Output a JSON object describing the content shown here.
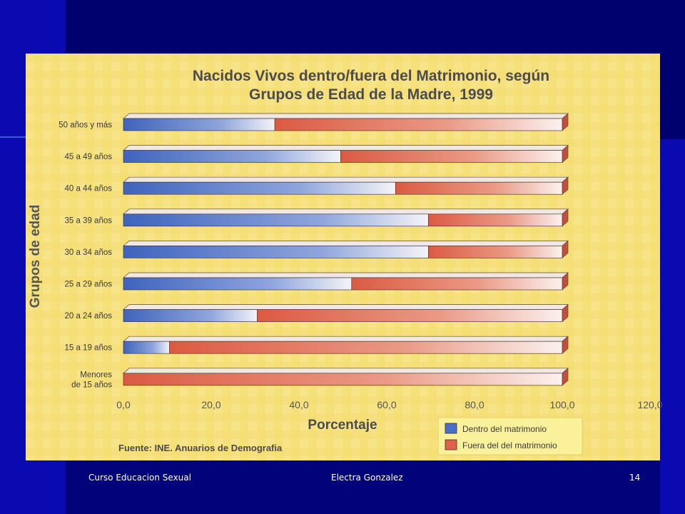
{
  "footer": {
    "course": "Curso Educacion Sexual",
    "author": "Electra Gonzalez",
    "page": "14"
  },
  "chart_data": {
    "type": "bar",
    "orientation": "horizontal",
    "stacked": true,
    "title_line1": "Nacidos Vivos dentro/fuera del Matrimonio, según",
    "title_line2": "Grupos de Edad de la Madre, 1999",
    "xlabel": "Porcentaje",
    "ylabel": "Grupos de edad",
    "xlim": [
      0,
      120
    ],
    "xticks": [
      "0,0",
      "20,0",
      "40,0",
      "60,0",
      "80,0",
      "100,0",
      "120,0"
    ],
    "categories": [
      "50 años y más",
      "45 a 49 años",
      "40 a 44 años",
      "35 a 39 años",
      "30 a 34 años",
      "25 a 29 años",
      "20 a 24 años",
      "15 a 19 años",
      "Menores|de 15 años"
    ],
    "series": [
      {
        "name": "Dentro del matrimonio",
        "color": "#4a6fc8",
        "values": [
          34.5,
          49.5,
          62,
          69.5,
          69.5,
          52,
          30.5,
          10.5,
          0
        ]
      },
      {
        "name": "Fuera del del matrimonio",
        "color": "#e0604a",
        "values": [
          65.5,
          50.5,
          38,
          30.5,
          30.5,
          48,
          69.5,
          89.5,
          100
        ]
      }
    ],
    "legend_position": "bottom-right",
    "source": "Fuente: INE. Anuarios de Demografia",
    "background": "#f6e07a"
  }
}
